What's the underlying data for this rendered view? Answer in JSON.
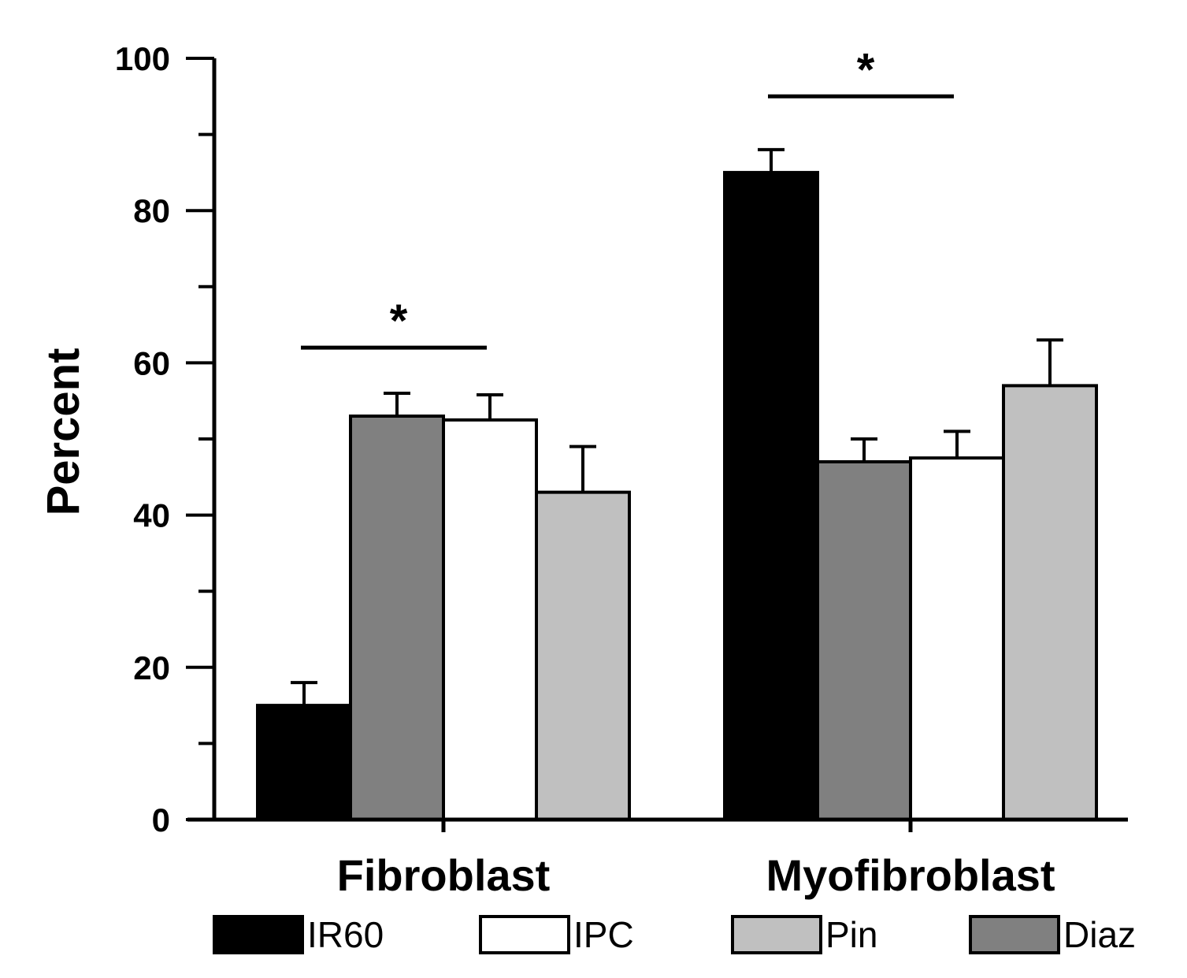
{
  "chart_data": {
    "type": "bar",
    "title": "",
    "xlabel": "",
    "ylabel": "Percent",
    "ylim": [
      0,
      100
    ],
    "yticks": [
      0,
      20,
      40,
      60,
      80,
      100
    ],
    "yticks_minor": [
      10,
      30,
      50,
      70,
      90
    ],
    "categories": [
      "Fibroblast",
      "Myofibroblast"
    ],
    "bar_order": [
      "IR60",
      "Diaz",
      "IPC",
      "Pin"
    ],
    "series": [
      {
        "name": "IR60",
        "color": "#000000",
        "values": [
          15,
          85
        ],
        "errors": [
          3,
          3
        ]
      },
      {
        "name": "Diaz",
        "color": "#808080",
        "values": [
          53,
          47
        ],
        "errors": [
          3,
          3
        ]
      },
      {
        "name": "IPC",
        "color": "#ffffff",
        "values": [
          52.5,
          47.5
        ],
        "errors": [
          3.3,
          3.5
        ]
      },
      {
        "name": "Pin",
        "color": "#c0c0c0",
        "values": [
          43,
          57
        ],
        "errors": [
          6,
          6
        ]
      }
    ],
    "legend": {
      "placement": "bottom",
      "order": [
        "IR60",
        "IPC",
        "Pin",
        "Diaz"
      ]
    },
    "annotations": [
      {
        "category": "Fibroblast",
        "text": "*",
        "span": [
          "IR60",
          "IPC"
        ],
        "y": 62
      },
      {
        "category": "Myofibroblast",
        "text": "*",
        "span": [
          "IR60",
          "IPC"
        ],
        "y": 95
      }
    ]
  }
}
